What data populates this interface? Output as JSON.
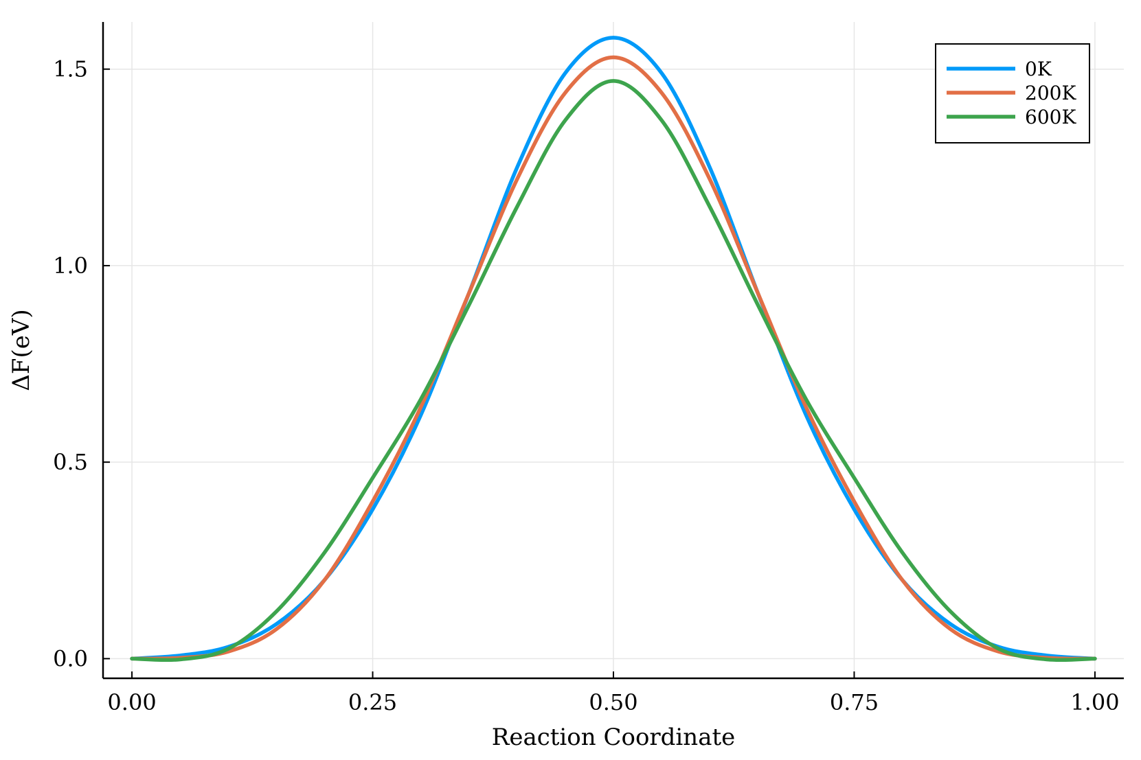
{
  "chart_data": {
    "type": "line",
    "title": "",
    "xlabel": "Reaction Coordinate",
    "ylabel": "ΔF(eV)",
    "xlim": [
      -0.03,
      1.03
    ],
    "ylim": [
      -0.05,
      1.62
    ],
    "xticks": [
      0.0,
      0.25,
      0.5,
      0.75,
      1.0
    ],
    "xtick_labels": [
      "0.00",
      "0.25",
      "0.50",
      "0.75",
      "1.00"
    ],
    "yticks": [
      0.0,
      0.5,
      1.0,
      1.5
    ],
    "ytick_labels": [
      "0.0",
      "0.5",
      "1.0",
      "1.5"
    ],
    "grid": true,
    "legend_position": "top-right",
    "x": [
      0.0,
      0.05,
      0.1,
      0.15,
      0.2,
      0.25,
      0.3,
      0.35,
      0.4,
      0.45,
      0.5,
      0.55,
      0.6,
      0.65,
      0.7,
      0.75,
      0.8,
      0.85,
      0.9,
      0.95,
      1.0
    ],
    "series": [
      {
        "name": "0K",
        "color": "#009af9",
        "values": [
          0.0,
          0.008,
          0.03,
          0.088,
          0.2,
          0.38,
          0.62,
          0.93,
          1.25,
          1.49,
          1.58,
          1.49,
          1.25,
          0.93,
          0.62,
          0.38,
          0.2,
          0.088,
          0.03,
          0.008,
          0.0
        ]
      },
      {
        "name": "200K",
        "color": "#e26f46",
        "values": [
          0.0,
          0.002,
          0.018,
          0.075,
          0.2,
          0.4,
          0.64,
          0.93,
          1.22,
          1.44,
          1.53,
          1.44,
          1.22,
          0.93,
          0.64,
          0.4,
          0.2,
          0.075,
          0.018,
          0.002,
          0.0
        ]
      },
      {
        "name": "600K",
        "color": "#3da44d",
        "values": [
          0.0,
          -0.002,
          0.025,
          0.12,
          0.27,
          0.46,
          0.66,
          0.9,
          1.15,
          1.37,
          1.47,
          1.37,
          1.15,
          0.9,
          0.66,
          0.46,
          0.27,
          0.12,
          0.025,
          -0.002,
          0.0
        ]
      }
    ]
  }
}
